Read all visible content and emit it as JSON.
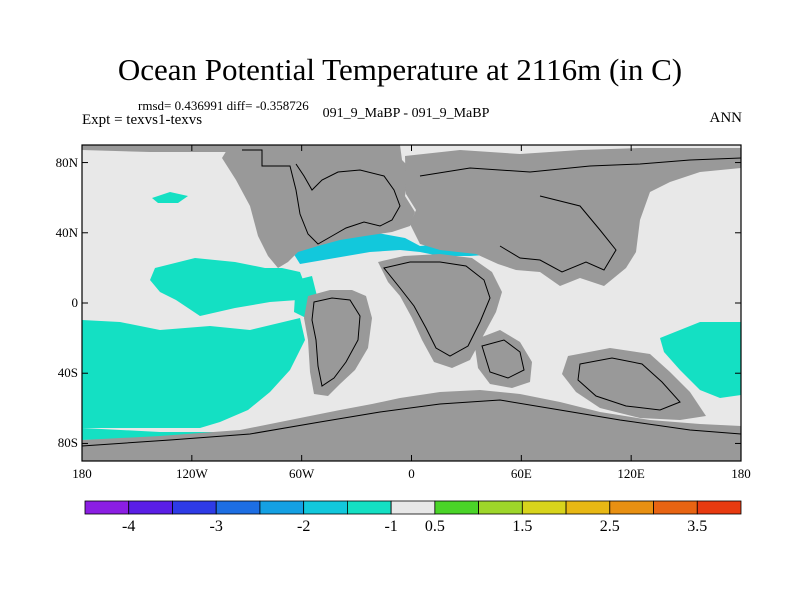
{
  "title": "Ocean Potential Temperature at 2116m (in C)",
  "stats": "rmsd= 0.436991 diff= -0.358726",
  "expt_label": "Expt = texvs1-texvs",
  "case_label": "091_9_MaBP - 091_9_MaBP",
  "season": "ANN",
  "lat_labels": [
    {
      "lat": 80,
      "label": "80N"
    },
    {
      "lat": 40,
      "label": "40N"
    },
    {
      "lat": 0,
      "label": "0"
    },
    {
      "lat": -40,
      "label": "40S"
    },
    {
      "lat": -80,
      "label": "80S"
    }
  ],
  "lon_labels": [
    {
      "lon": -180,
      "label": "180"
    },
    {
      "lon": -120,
      "label": "120W"
    },
    {
      "lon": -60,
      "label": "60W"
    },
    {
      "lon": 0,
      "label": "0"
    },
    {
      "lon": 60,
      "label": "60E"
    },
    {
      "lon": 120,
      "label": "120E"
    },
    {
      "lon": 180,
      "label": "180"
    }
  ],
  "colorbar": {
    "colors": [
      "#8b1ee3",
      "#5a1ee6",
      "#2e3be6",
      "#1d6ee3",
      "#14a0e3",
      "#12c8dc",
      "#14e0c3",
      "#e8e8e8",
      "#4ad428",
      "#9ed62a",
      "#d8d41c",
      "#e8b814",
      "#e89012",
      "#e86412",
      "#e83a10"
    ],
    "labels": [
      {
        "index": 1,
        "label": "-4"
      },
      {
        "index": 3,
        "label": "-3"
      },
      {
        "index": 5,
        "label": "-2"
      },
      {
        "index": 7,
        "label": "-1"
      },
      {
        "index": 8,
        "label": "0.5"
      },
      {
        "index": 10,
        "label": "1.5"
      },
      {
        "index": 12,
        "label": "2.5"
      },
      {
        "index": 14,
        "label": "3.5"
      }
    ]
  },
  "colors": {
    "land": "#999999",
    "ocean_neutral": "#e8e8e8",
    "anomaly_cool": "#14e0c3",
    "anomaly_cooler": "#12c8dc"
  }
}
